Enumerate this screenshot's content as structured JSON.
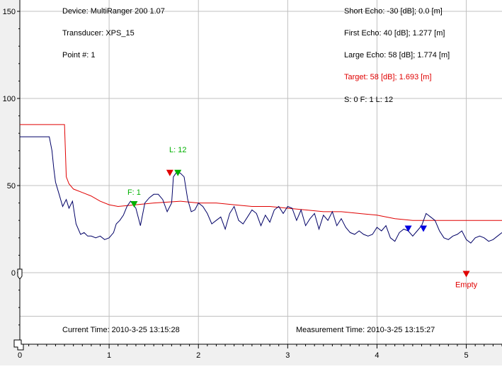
{
  "info": {
    "device": "Device: MultiRanger 200  1.07",
    "transducer": "Transducer: XPS_15",
    "point": "Point #: 1",
    "short_echo": "Short Echo: -30 [dB]; 0.0 [m]",
    "first_echo": "First Echo: 40 [dB]; 1.277 [m]",
    "large_echo": "Large Echo: 58 [dB]; 1.774 [m]",
    "target": "Target: 58 [dB]; 1.693 [m]",
    "sfl": "S: 0   F: 1   L: 12",
    "current_time": "Current Time: 2010-3-25 13:15:28",
    "measurement_time": "Measurement Time: 2010-3-25 13:15:27"
  },
  "markers": {
    "first_label": "F: 1",
    "large_label": "L: 12",
    "empty_label": "Empty"
  },
  "colors": {
    "echo": "#000066",
    "tvt": "#e00000",
    "marker_green": "#00b000",
    "marker_red": "#e00000",
    "marker_blue": "#0000e0",
    "grid": "#c0c0c0"
  },
  "chart_data": {
    "type": "line",
    "xlim": [
      0,
      5.4
    ],
    "ylim": [
      -40,
      150
    ],
    "y_ticks": [
      "150",
      "100",
      "50",
      "0"
    ],
    "y_tick_values": [
      150,
      100,
      50,
      0
    ],
    "x_ticks": [
      "0",
      "1",
      "2",
      "3",
      "4",
      "5"
    ],
    "x_tick_values": [
      0,
      1,
      2,
      3,
      4,
      5
    ],
    "series": [
      {
        "key": "echo",
        "x": [
          0,
          0.33,
          0.36,
          0.38,
          0.4,
          0.44,
          0.48,
          0.52,
          0.55,
          0.59,
          0.63,
          0.68,
          0.72,
          0.76,
          0.8,
          0.85,
          0.9,
          0.95,
          1.0,
          1.05,
          1.08,
          1.12,
          1.16,
          1.2,
          1.24,
          1.3,
          1.35,
          1.4,
          1.45,
          1.5,
          1.55,
          1.6,
          1.65,
          1.7,
          1.72,
          1.76,
          1.8,
          1.84,
          1.88,
          1.92,
          1.96,
          2.0,
          2.05,
          2.1,
          2.15,
          2.2,
          2.25,
          2.3,
          2.35,
          2.4,
          2.45,
          2.5,
          2.55,
          2.6,
          2.65,
          2.7,
          2.75,
          2.8,
          2.85,
          2.9,
          2.95,
          3.0,
          3.05,
          3.1,
          3.15,
          3.2,
          3.25,
          3.3,
          3.35,
          3.4,
          3.45,
          3.5,
          3.55,
          3.6,
          3.65,
          3.7,
          3.75,
          3.8,
          3.85,
          3.9,
          3.95,
          4.0,
          4.05,
          4.1,
          4.15,
          4.2,
          4.25,
          4.3,
          4.35,
          4.4,
          4.45,
          4.5,
          4.55,
          4.6,
          4.65,
          4.7,
          4.75,
          4.8,
          4.85,
          4.9,
          4.95,
          5.0,
          5.05,
          5.1,
          5.15,
          5.2,
          5.25,
          5.3,
          5.35,
          5.4
        ],
        "y": [
          78,
          78,
          70,
          60,
          52,
          45,
          38,
          42,
          37,
          41,
          28,
          22,
          23,
          21,
          21,
          20,
          21,
          19,
          20,
          23,
          28,
          30,
          33,
          38,
          41,
          37,
          27,
          40,
          43,
          45,
          45,
          42,
          35,
          40,
          55,
          58,
          57,
          55,
          42,
          35,
          36,
          40,
          38,
          34,
          28,
          30,
          32,
          25,
          34,
          38,
          30,
          28,
          32,
          36,
          34,
          27,
          33,
          29,
          36,
          38,
          34,
          38,
          37,
          30,
          36,
          27,
          31,
          34,
          25,
          33,
          30,
          35,
          27,
          31,
          26,
          23,
          22,
          24,
          22,
          21,
          22,
          26,
          24,
          27,
          20,
          18,
          23,
          25,
          24,
          21,
          24,
          27,
          34,
          32,
          30,
          24,
          20,
          19,
          21,
          22,
          24,
          19,
          17,
          20,
          21,
          20,
          18,
          19,
          21,
          23
        ]
      },
      {
        "key": "tvt",
        "x": [
          0,
          0.5,
          0.52,
          0.55,
          0.6,
          0.7,
          0.8,
          0.9,
          1.0,
          1.1,
          1.3,
          1.5,
          1.8,
          2.0,
          2.2,
          2.4,
          2.6,
          2.8,
          3.0,
          3.2,
          3.4,
          3.6,
          3.8,
          4.0,
          4.2,
          4.4,
          4.6,
          4.8,
          5.0,
          5.4
        ],
        "y": [
          85,
          85,
          55,
          51,
          48,
          46,
          44,
          41,
          39,
          38,
          39,
          40,
          41,
          40,
          40,
          39,
          38,
          38,
          37,
          36,
          35,
          35,
          34,
          33,
          31,
          30,
          30,
          30,
          30,
          30
        ]
      }
    ],
    "markers": [
      {
        "x": 1.28,
        "y": 39,
        "color": "green",
        "label_key": "first_label"
      },
      {
        "x": 1.68,
        "y": 57,
        "color": "red"
      },
      {
        "x": 1.77,
        "y": 57,
        "color": "green",
        "label_key": "large_label"
      },
      {
        "x": 4.35,
        "y": 25,
        "color": "blue"
      },
      {
        "x": 4.52,
        "y": 25,
        "color": "blue"
      },
      {
        "x": 5.0,
        "y": -1,
        "color": "red",
        "label_key": "empty_label"
      }
    ]
  }
}
